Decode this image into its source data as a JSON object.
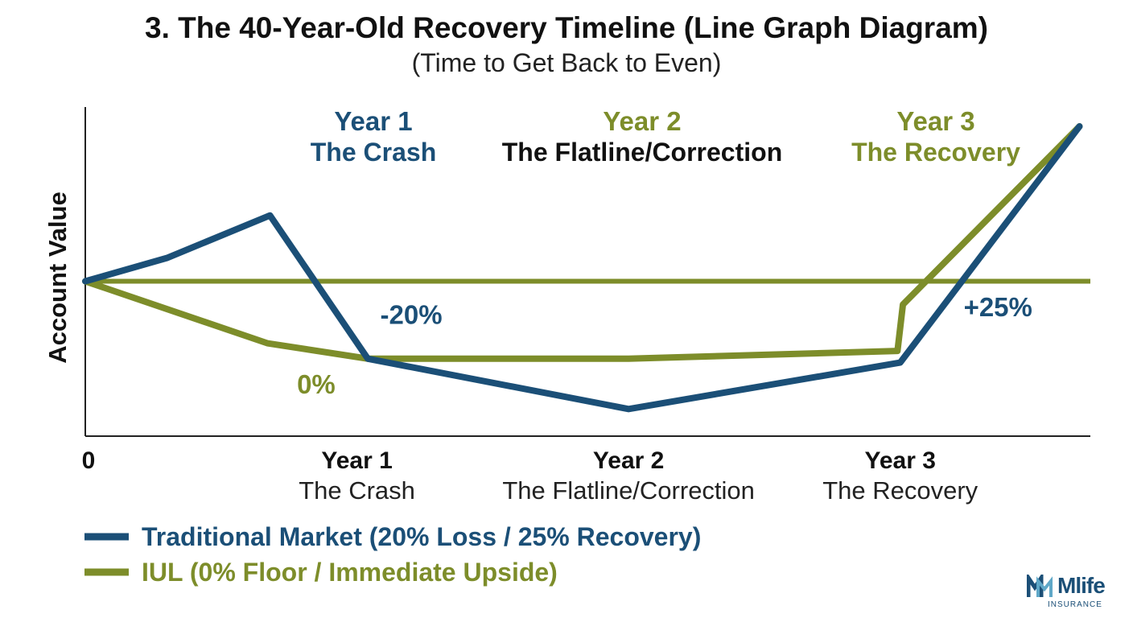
{
  "chart_data": {
    "type": "line",
    "title": "3. The 40-Year-Old Recovery Timeline (Line Graph Diagram)",
    "subtitle": "(Time to Get Back to Even)",
    "ylabel": "Account Value",
    "xlabel": "",
    "x_ticks": [
      {
        "x": 0,
        "label": "0",
        "sublabel": ""
      },
      {
        "x": 1,
        "label": "Year 1",
        "sublabel": "The Crash"
      },
      {
        "x": 2,
        "label": "Year 2",
        "sublabel": "The Flatline/Correction"
      },
      {
        "x": 3,
        "label": "Year 3",
        "sublabel": "The Recovery"
      }
    ],
    "phase_headers": [
      {
        "x": 1,
        "year": "Year 1",
        "name": "The Crash",
        "year_color": "#1b4f77",
        "name_color": "#1b4f77"
      },
      {
        "x": 2,
        "year": "Year 2",
        "name": "The Flatline/Correction",
        "year_color": "#7d8d2a",
        "name_color": "#111111"
      },
      {
        "x": 3,
        "year": "Year 3",
        "name": "The Recovery",
        "year_color": "#7d8d2a",
        "name_color": "#7d8d2a"
      }
    ],
    "xlim": [
      0,
      3.7
    ],
    "ylim": [
      60,
      145
    ],
    "grid": false,
    "baseline": {
      "y": 100,
      "color": "#7d8d2a"
    },
    "legend_position": "bottom-left",
    "series": [
      {
        "name": "Traditional Market (20% Loss / 25% Recovery)",
        "color": "#1b4f77",
        "points": [
          [
            0,
            100
          ],
          [
            0.3,
            106
          ],
          [
            0.68,
            117
          ],
          [
            1.04,
            80
          ],
          [
            2.0,
            67
          ],
          [
            3.0,
            79
          ],
          [
            3.66,
            140
          ]
        ]
      },
      {
        "name": "IUL (0% Floor / Immediate Upside)",
        "color": "#7d8d2a",
        "points": [
          [
            0,
            100
          ],
          [
            0.67,
            84
          ],
          [
            1.04,
            80
          ],
          [
            2.0,
            80
          ],
          [
            2.99,
            82
          ],
          [
            3.01,
            94
          ],
          [
            3.66,
            140
          ]
        ]
      }
    ],
    "annotations": [
      {
        "text": "-20%",
        "x": 1.2,
        "y": 89,
        "color": "#1b4f77"
      },
      {
        "text": "0%",
        "x": 0.85,
        "y": 71,
        "color": "#7d8d2a"
      },
      {
        "text": "+25%",
        "x": 3.36,
        "y": 91,
        "color": "#1b4f77"
      }
    ]
  },
  "logo": {
    "word": "Mlife",
    "sub": "INSURANCE"
  }
}
